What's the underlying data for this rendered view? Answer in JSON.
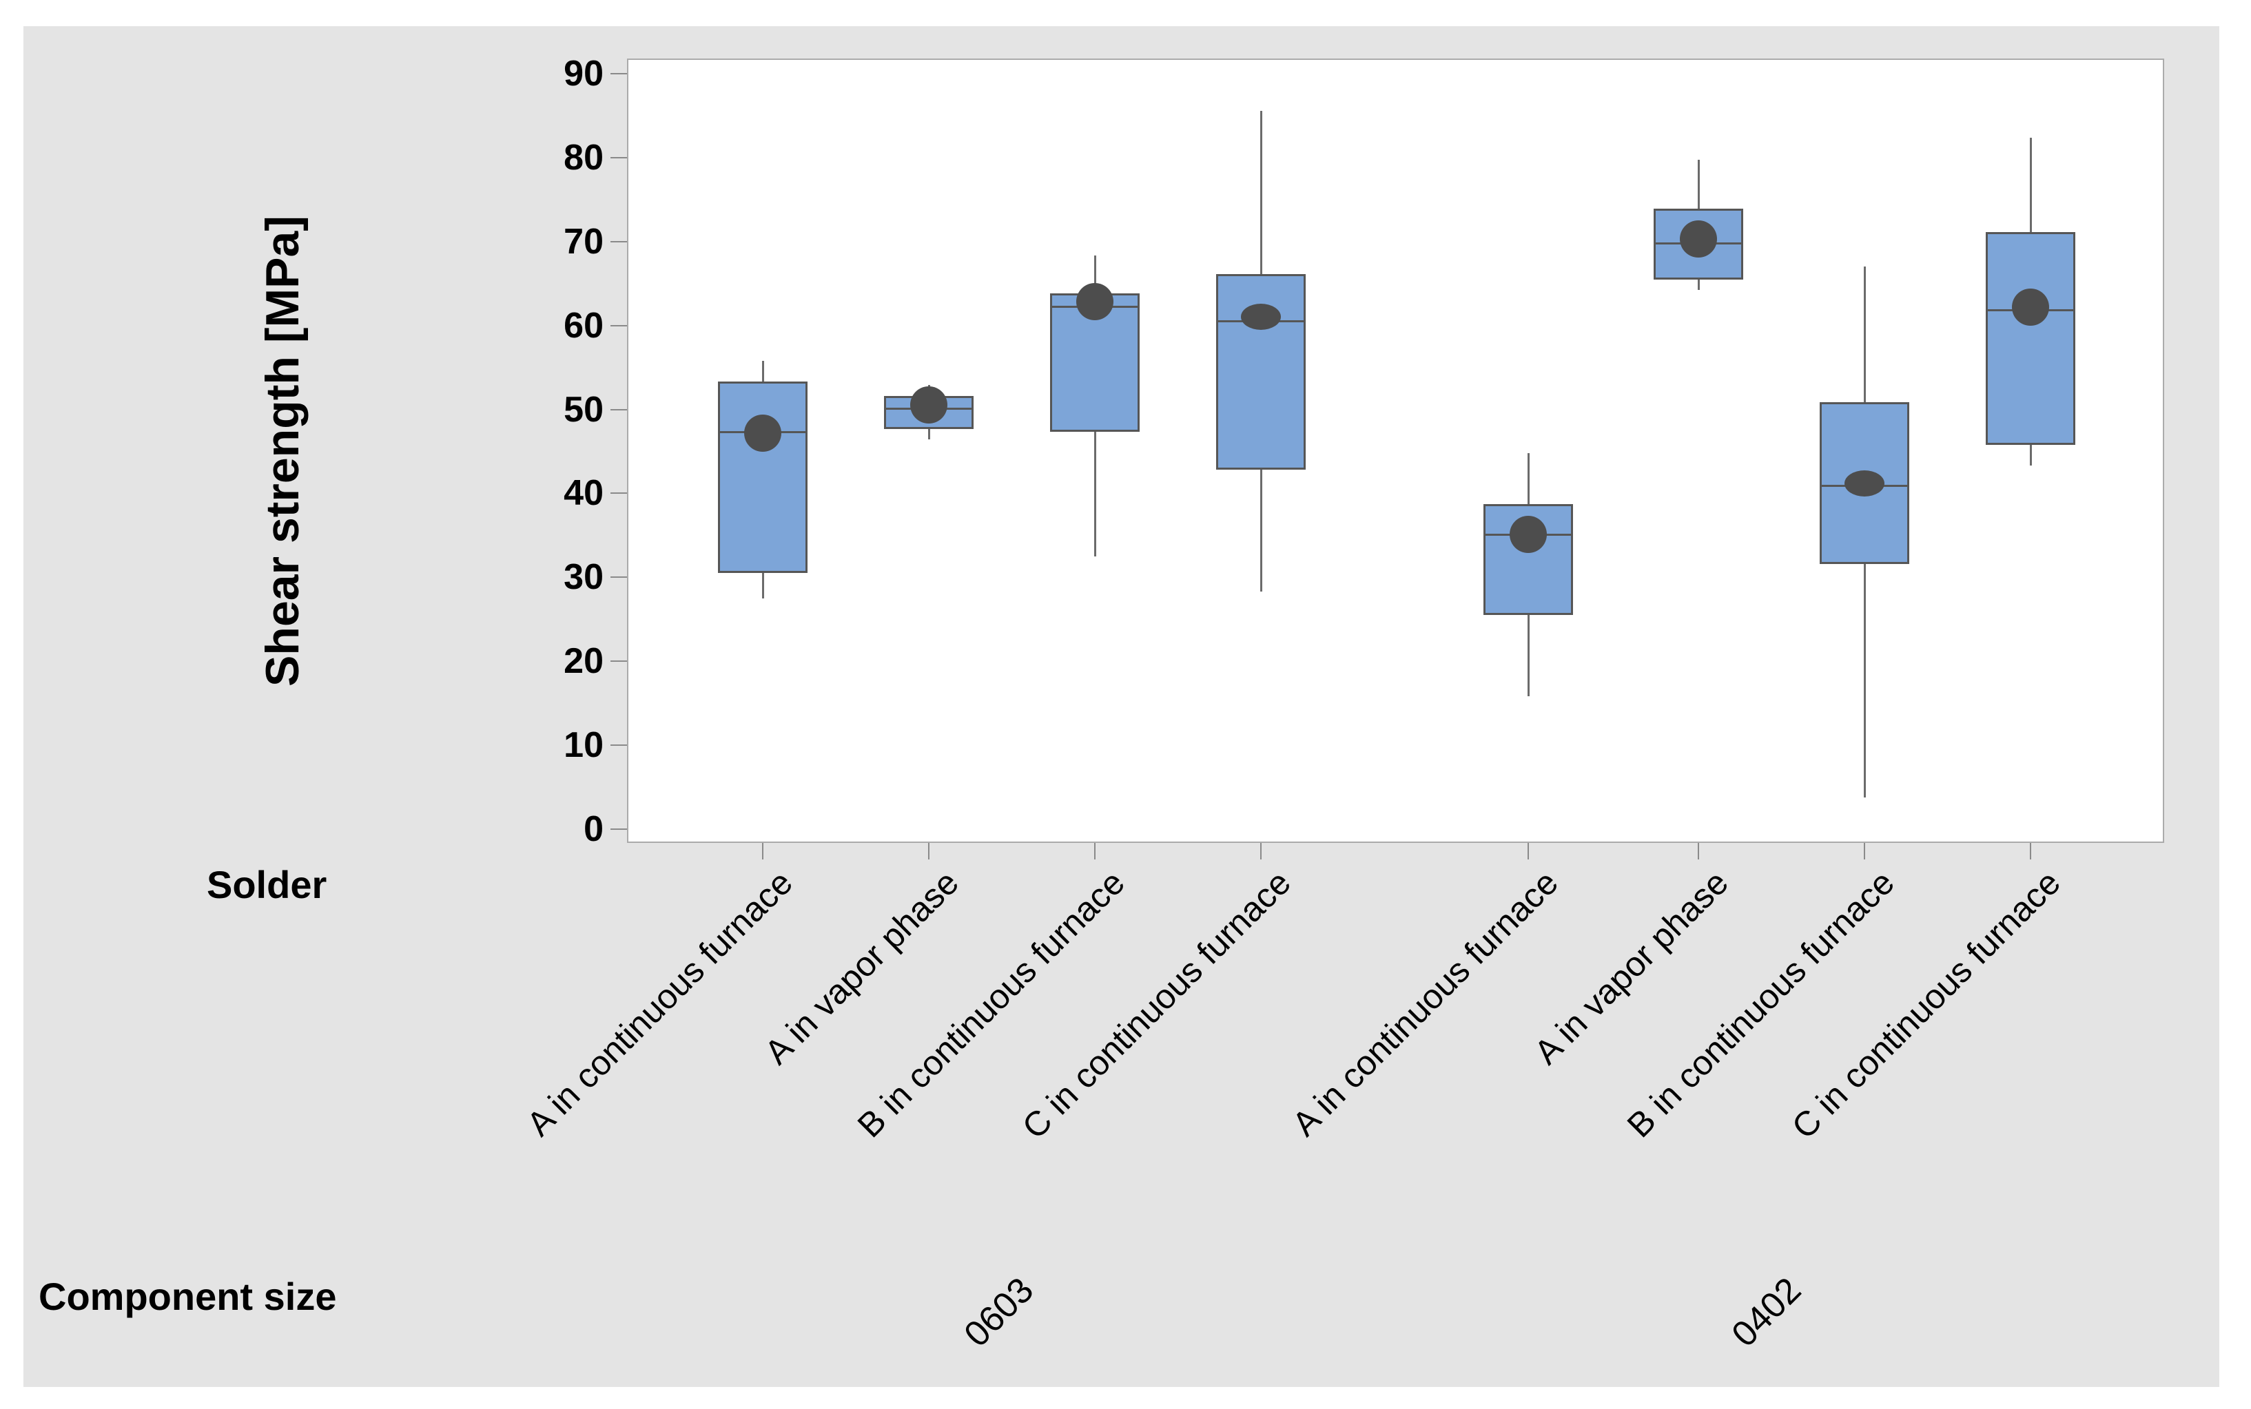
{
  "labels": {
    "y_axis_title": "Shear strength [MPa]",
    "solder_row_label": "Solder",
    "component_size_row_label": "Component size"
  },
  "colors": {
    "canvas_bg": "#e4e4e4",
    "plot_bg": "#ffffff",
    "plot_border": "#ababab",
    "box_fill": "#7da5d8",
    "box_border": "#565656",
    "median_line": "#565656",
    "whisker": "#6b6b6b",
    "mean_marker": "#4d4d4d",
    "tick_mark": "#8a8a8a",
    "text": "#000000"
  },
  "chart_data": {
    "type": "grouped_boxplot",
    "title": "",
    "grid": "off",
    "legend": "none",
    "y_axis": {
      "label": "Shear strength [MPa]",
      "min": 0,
      "max": 90,
      "tick_step": 10,
      "ticks": [
        0,
        10,
        20,
        30,
        40,
        50,
        60,
        70,
        80,
        90
      ]
    },
    "x_axis": {
      "level1_label": "Solder",
      "level2_label": "Component size"
    },
    "groups": [
      {
        "component_size": "0603",
        "boxes": [
          {
            "solder": "A in continuous furnace",
            "whisker_low": 27.5,
            "q1": 30.5,
            "median": 47.3,
            "mean": 47.2,
            "q3": 53.3,
            "whisker_high": 55.8,
            "mean_marker_shape": "circle"
          },
          {
            "solder": "A in vapor phase",
            "whisker_low": 46.4,
            "q1": 47.7,
            "median": 50.1,
            "mean": 50.5,
            "q3": 51.6,
            "whisker_high": 52.9,
            "mean_marker_shape": "circle"
          },
          {
            "solder": "B in continuous furnace",
            "whisker_low": 32.5,
            "q1": 47.3,
            "median": 62.2,
            "mean": 62.8,
            "q3": 63.8,
            "whisker_high": 68.3,
            "mean_marker_shape": "circle"
          },
          {
            "solder": "C in continuous furnace",
            "whisker_low": 28.3,
            "q1": 42.8,
            "median": 60.5,
            "mean": 61.0,
            "q3": 66.1,
            "whisker_high": 85.6,
            "mean_marker_shape": "ellipse"
          }
        ]
      },
      {
        "component_size": "0402",
        "boxes": [
          {
            "solder": "A in continuous furnace",
            "whisker_low": 15.8,
            "q1": 25.5,
            "median": 35.1,
            "mean": 35.1,
            "q3": 38.7,
            "whisker_high": 44.8,
            "mean_marker_shape": "circle"
          },
          {
            "solder": "A in vapor phase",
            "whisker_low": 64.2,
            "q1": 65.5,
            "median": 69.8,
            "mean": 70.3,
            "q3": 73.9,
            "whisker_high": 79.7,
            "mean_marker_shape": "circle"
          },
          {
            "solder": "B in continuous furnace",
            "whisker_low": 3.8,
            "q1": 31.6,
            "median": 40.9,
            "mean": 41.2,
            "q3": 50.9,
            "whisker_high": 67.0,
            "mean_marker_shape": "ellipse"
          },
          {
            "solder": "C in continuous furnace",
            "whisker_low": 43.3,
            "q1": 45.8,
            "median": 61.8,
            "mean": 62.2,
            "q3": 71.1,
            "whisker_high": 82.4,
            "mean_marker_shape": "circle"
          }
        ]
      }
    ]
  }
}
